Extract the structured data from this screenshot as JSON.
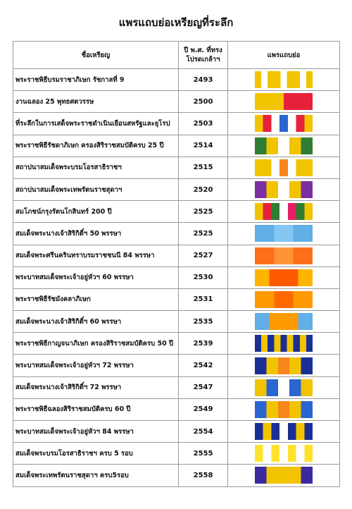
{
  "header": {
    "title": "แพรแถบย่อเหรียญที่ระลึก"
  },
  "table": {
    "headers": [
      "ชื่อเหรียญ",
      [
        "ปี พ.ศ. ที่ทรง",
        "โปรดเกล้าฯ"
      ],
      "แพรแถบย่อ"
    ],
    "rows": [
      [
        "พระราชพิธีบรมราชาภิเษก รัชกาลที่ 9",
        "2493"
      ],
      [
        "งานฉลอง 25 พุทธศตวรรษ",
        "2500"
      ],
      [
        "ที่ระลึกในการเสด็จพระราชดำเนินเยือนสหรัฐและยุโรป",
        "2503"
      ],
      [
        "พระราชพิธีรัชดาภิเษก ครองสิริราชสมบัติครบ 25 ปี",
        "2514"
      ],
      [
        "สถาปนาสมเด็จพระบรมโอรสาธิราชฯ",
        "2515"
      ],
      [
        "สถาปนาสมเด็จพระเทพรัตนราชสุดาฯ",
        "2520"
      ],
      [
        "สมโภชน์กรุงรัตนโกสินทร์ 200 ปี",
        "2525"
      ],
      [
        "สมเด็จพระนางเจ้าสิริกิติ์ฯ 50 พรรษา",
        "2525"
      ],
      [
        "สมเด็จพระศรีนครินทราบรมราชชนนี 84 พรรษา",
        "2527"
      ],
      [
        "พระบาทสมเด็จพระเจ้าอยู่หัวฯ 60 พรรษา",
        "2530"
      ],
      [
        "พระราชพิธีรัชมังคลาภิเษก",
        "2531"
      ],
      [
        "สมเด็จพระนางเจ้าสิริกิติ์ฯ 60 พรรษา",
        "2535"
      ],
      [
        "พระราชพิธีกาญจนาภิเษก ครองสิริราชสมบัติครบ 50 ปี",
        "2539"
      ],
      [
        "พระบาทสมเด็จพระเจ้าอยู่หัวฯ 72 พรรษา",
        "2542"
      ],
      [
        "สมเด็จพระนางเจ้าสิริกิติ์ฯ 72 พรรษา",
        "2547"
      ],
      [
        "พระราชพิธีฉลองสิริราชสมบัติครบ 60 ปี",
        "2549"
      ],
      [
        "พระบาทสมเด็จพระเจ้าอยู่หัวฯ 84 พรรษา",
        "2554"
      ],
      [
        "สมเด็จพระบรมโอรสาธิราชฯ ครบ 5 รอบ",
        "2555"
      ],
      [
        "สมเด็จพระเทพรัตนราชสุดาฯ ครบ5รอบ",
        "2558"
      ]
    ]
  }
}
